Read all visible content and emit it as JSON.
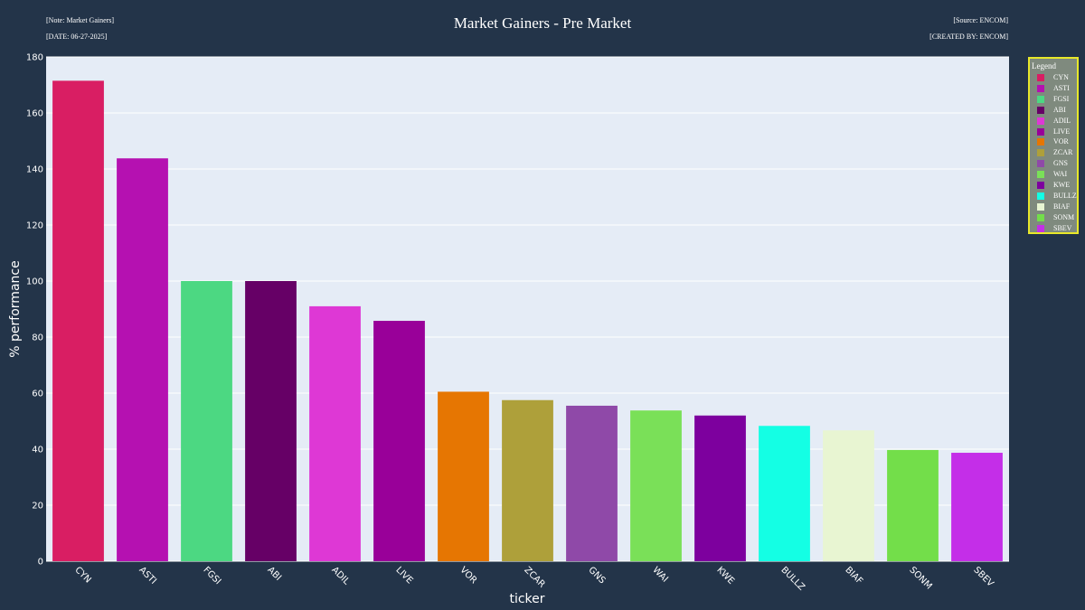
{
  "header": {
    "note": "[Note: Market Gainers]",
    "date": "[DATE: 06-27-2025]",
    "source": "[Source: ENCOM]",
    "created_by": "[CREATED BY: ENCOM]"
  },
  "legend": {
    "title": "Legend"
  },
  "chart_data": {
    "type": "bar",
    "title": "Market Gainers - Pre Market",
    "xlabel": "ticker",
    "ylabel": "% performance",
    "ylim": [
      0,
      180
    ],
    "yticks": [
      0,
      20,
      40,
      60,
      80,
      100,
      120,
      140,
      160,
      180
    ],
    "grid": true,
    "legend_position": "right",
    "categories": [
      "CYN",
      "ASTI",
      "FGSI",
      "ABI",
      "ADIL",
      "LIVE",
      "VOR",
      "ZCAR",
      "GNS",
      "WAI",
      "KWE",
      "BULLZ",
      "BIAF",
      "SONM",
      "SBEV"
    ],
    "values": [
      171.5,
      143.8,
      100.0,
      100.0,
      91.0,
      85.8,
      60.5,
      57.5,
      55.5,
      53.8,
      52.0,
      48.3,
      46.7,
      39.7,
      38.7
    ],
    "colors": [
      "#d91e63",
      "#b511b1",
      "#4cd882",
      "#660066",
      "#de38d5",
      "#990099",
      "#e67602",
      "#aea03a",
      "#8f49a8",
      "#7ae058",
      "#7d009e",
      "#14ffe4",
      "#e8f5d2",
      "#73de4a",
      "#c42ee8"
    ]
  }
}
